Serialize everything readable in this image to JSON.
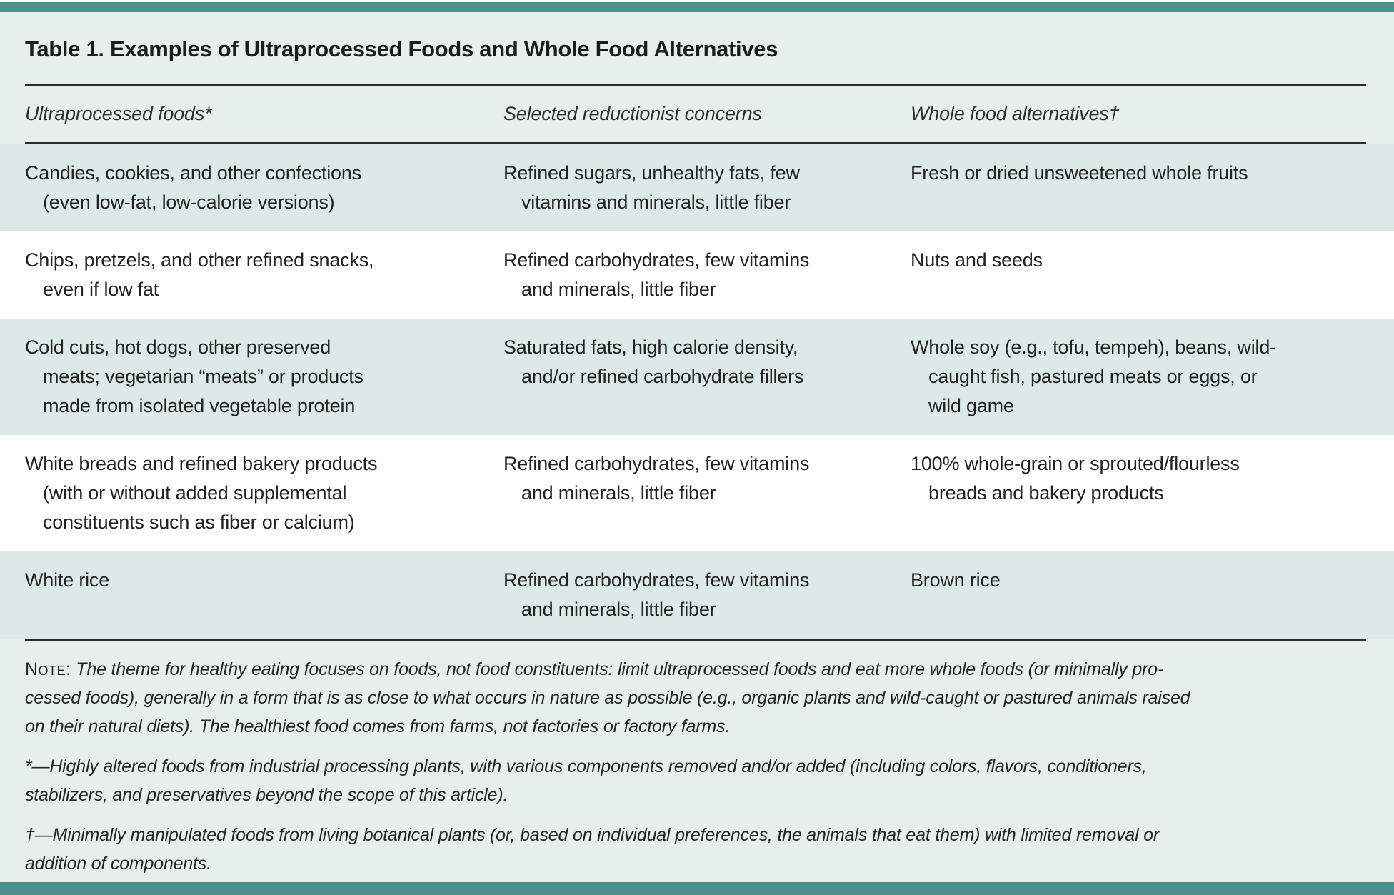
{
  "title": "Table 1. Examples of Ultraprocessed Foods and Whole Food Alternatives",
  "columns": [
    "Ultraprocessed foods*",
    "Selected reductionist concerns",
    "Whole food alternatives†"
  ],
  "table": {
    "rows": [
      {
        "cells": [
          [
            "Candies, cookies, and other confections",
            "(even low-fat, low-calorie versions)"
          ],
          [
            "Refined sugars, unhealthy fats, few",
            "vitamins and minerals, little fiber"
          ],
          [
            "Fresh or dried unsweetened whole fruits"
          ]
        ]
      },
      {
        "cells": [
          [
            "Chips, pretzels, and other refined snacks,",
            "even if low fat"
          ],
          [
            "Refined carbohydrates, few vitamins",
            "and minerals, little fiber"
          ],
          [
            "Nuts and seeds"
          ]
        ]
      },
      {
        "cells": [
          [
            "Cold cuts, hot dogs, other preserved",
            "meats; vegetarian “meats” or products",
            "made from isolated vegetable protein"
          ],
          [
            "Saturated fats, high calorie density,",
            "and/or refined carbohydrate fillers"
          ],
          [
            "Whole soy (e.g., tofu, tempeh), beans, wild-",
            "caught fish, pastured meats or eggs, or",
            "wild game"
          ]
        ]
      },
      {
        "cells": [
          [
            "White breads and refined bakery products",
            "(with or without added supplemental",
            "constituents such as fiber or calcium)"
          ],
          [
            "Refined carbohydrates, few vitamins",
            "and minerals, little fiber"
          ],
          [
            "100% whole-grain or sprouted/flourless",
            "breads and bakery products"
          ]
        ]
      },
      {
        "cells": [
          [
            "White rice"
          ],
          [
            "Refined carbohydrates, few vitamins",
            "and minerals, little fiber"
          ],
          [
            "Brown rice"
          ]
        ]
      }
    ]
  },
  "note": {
    "label": "Note:",
    "text": "The theme for healthy eating focuses on foods, not food constituents: limit ultraprocessed foods and eat more whole foods (or minimally pro-\ncessed foods), generally in a form that is as close to what occurs in nature as possible (e.g., organic plants and wild-caught or pastured animals raised\non their natural diets). The healthiest food comes from farms, not factories or factory farms."
  },
  "footnotes": [
    "*—Highly altered foods from industrial processing plants, with various components removed and/or added (including colors, flavors, conditioners,\nstabilizers, and preservatives beyond the scope of this article).",
    "†—Minimally manipulated foods from living botanical plants (or, based on individual preferences, the animals that eat them) with limited removal or\naddition of components."
  ],
  "colors": {
    "accent_teal": "#4a918e",
    "page_background": "#e6efec",
    "tinted_row": "#dce9e6",
    "white_row": "#ffffff",
    "text": "#222222"
  }
}
